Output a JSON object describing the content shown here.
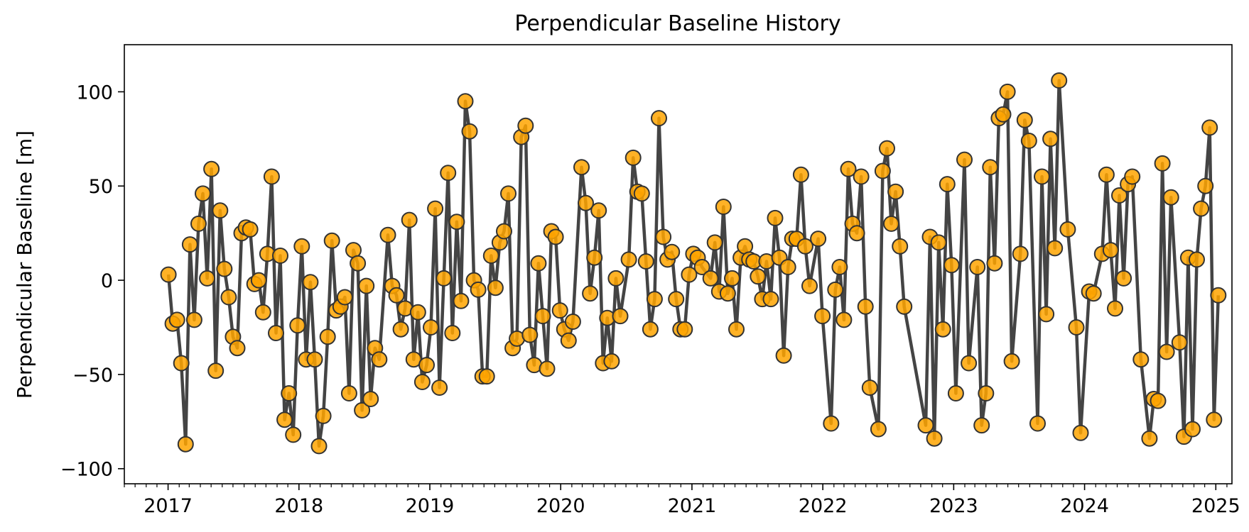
{
  "chart_data": {
    "type": "line",
    "title": "Perpendicular Baseline History",
    "xlabel": "",
    "ylabel": "Perpendicular Baseline [m]",
    "x_ticks": [
      "2017",
      "2018",
      "2019",
      "2020",
      "2021",
      "2022",
      "2023",
      "2024",
      "2025"
    ],
    "y_ticks": [
      100,
      50,
      0,
      -50,
      -100
    ],
    "y_tick_labels": [
      "100",
      "50",
      "0",
      "−50",
      "−100"
    ],
    "xlim": [
      "2016-09-01",
      "2025-02-15"
    ],
    "ylim": [
      -108,
      125
    ],
    "grid": false,
    "legend": "none",
    "colors": {
      "line": "#444444",
      "marker_fill": "#FFA500",
      "marker_edge": "#333333"
    },
    "series": [
      {
        "marker": "circle",
        "points": [
          [
            "2017-01-02",
            3
          ],
          [
            "2017-01-14",
            -23
          ],
          [
            "2017-01-26",
            -21
          ],
          [
            "2017-02-07",
            -44
          ],
          [
            "2017-02-19",
            -87
          ],
          [
            "2017-03-03",
            19
          ],
          [
            "2017-03-15",
            -21
          ],
          [
            "2017-03-27",
            30
          ],
          [
            "2017-04-08",
            46
          ],
          [
            "2017-04-20",
            1
          ],
          [
            "2017-05-02",
            59
          ],
          [
            "2017-05-14",
            -48
          ],
          [
            "2017-05-26",
            37
          ],
          [
            "2017-06-07",
            6
          ],
          [
            "2017-06-19",
            -9
          ],
          [
            "2017-07-01",
            -30
          ],
          [
            "2017-07-13",
            -36
          ],
          [
            "2017-07-25",
            25
          ],
          [
            "2017-08-06",
            28
          ],
          [
            "2017-08-18",
            27
          ],
          [
            "2017-08-30",
            -2
          ],
          [
            "2017-09-11",
            0
          ],
          [
            "2017-09-23",
            -17
          ],
          [
            "2017-10-05",
            14
          ],
          [
            "2017-10-17",
            55
          ],
          [
            "2017-10-29",
            -28
          ],
          [
            "2017-11-10",
            13
          ],
          [
            "2017-11-22",
            -74
          ],
          [
            "2017-12-04",
            -60
          ],
          [
            "2017-12-16",
            -82
          ],
          [
            "2017-12-28",
            -24
          ],
          [
            "2018-01-09",
            18
          ],
          [
            "2018-01-21",
            -42
          ],
          [
            "2018-02-02",
            -1
          ],
          [
            "2018-02-14",
            -42
          ],
          [
            "2018-02-26",
            -88
          ],
          [
            "2018-03-10",
            -72
          ],
          [
            "2018-03-22",
            -30
          ],
          [
            "2018-04-03",
            21
          ],
          [
            "2018-04-15",
            -16
          ],
          [
            "2018-04-27",
            -14
          ],
          [
            "2018-05-09",
            -9
          ],
          [
            "2018-05-21",
            -60
          ],
          [
            "2018-06-02",
            16
          ],
          [
            "2018-06-14",
            9
          ],
          [
            "2018-06-26",
            -69
          ],
          [
            "2018-07-08",
            -3
          ],
          [
            "2018-07-20",
            -63
          ],
          [
            "2018-08-01",
            -36
          ],
          [
            "2018-08-13",
            -42
          ],
          [
            "2018-09-06",
            24
          ],
          [
            "2018-09-18",
            -3
          ],
          [
            "2018-09-30",
            -8
          ],
          [
            "2018-10-12",
            -26
          ],
          [
            "2018-10-24",
            -15
          ],
          [
            "2018-11-05",
            32
          ],
          [
            "2018-11-17",
            -42
          ],
          [
            "2018-11-29",
            -17
          ],
          [
            "2018-12-11",
            -54
          ],
          [
            "2018-12-23",
            -45
          ],
          [
            "2019-01-04",
            -25
          ],
          [
            "2019-01-16",
            38
          ],
          [
            "2019-01-28",
            -57
          ],
          [
            "2019-02-09",
            1
          ],
          [
            "2019-02-21",
            57
          ],
          [
            "2019-03-05",
            -28
          ],
          [
            "2019-03-17",
            31
          ],
          [
            "2019-03-29",
            -11
          ],
          [
            "2019-04-10",
            95
          ],
          [
            "2019-04-22",
            79
          ],
          [
            "2019-05-04",
            0
          ],
          [
            "2019-05-16",
            -5
          ],
          [
            "2019-05-28",
            -51
          ],
          [
            "2019-06-09",
            -51
          ],
          [
            "2019-06-21",
            13
          ],
          [
            "2019-07-03",
            -4
          ],
          [
            "2019-07-15",
            20
          ],
          [
            "2019-07-27",
            26
          ],
          [
            "2019-08-08",
            46
          ],
          [
            "2019-08-20",
            -36
          ],
          [
            "2019-09-01",
            -31
          ],
          [
            "2019-09-13",
            76
          ],
          [
            "2019-09-25",
            82
          ],
          [
            "2019-10-07",
            -29
          ],
          [
            "2019-10-19",
            -45
          ],
          [
            "2019-10-31",
            9
          ],
          [
            "2019-11-12",
            -19
          ],
          [
            "2019-11-24",
            -47
          ],
          [
            "2019-12-06",
            26
          ],
          [
            "2019-12-18",
            23
          ],
          [
            "2019-12-30",
            -16
          ],
          [
            "2020-01-11",
            -26
          ],
          [
            "2020-01-23",
            -32
          ],
          [
            "2020-02-04",
            -22
          ],
          [
            "2020-02-28",
            60
          ],
          [
            "2020-03-11",
            41
          ],
          [
            "2020-03-23",
            -7
          ],
          [
            "2020-04-04",
            12
          ],
          [
            "2020-04-16",
            37
          ],
          [
            "2020-04-28",
            -44
          ],
          [
            "2020-05-10",
            -20
          ],
          [
            "2020-05-22",
            -43
          ],
          [
            "2020-06-03",
            1
          ],
          [
            "2020-06-15",
            -19
          ],
          [
            "2020-07-09",
            11
          ],
          [
            "2020-07-21",
            65
          ],
          [
            "2020-08-02",
            47
          ],
          [
            "2020-08-14",
            46
          ],
          [
            "2020-08-26",
            10
          ],
          [
            "2020-09-07",
            -26
          ],
          [
            "2020-09-19",
            -10
          ],
          [
            "2020-10-01",
            86
          ],
          [
            "2020-10-13",
            23
          ],
          [
            "2020-10-25",
            11
          ],
          [
            "2020-11-06",
            15
          ],
          [
            "2020-11-18",
            -10
          ],
          [
            "2020-11-30",
            -26
          ],
          [
            "2020-12-12",
            -26
          ],
          [
            "2020-12-24",
            3
          ],
          [
            "2021-01-05",
            14
          ],
          [
            "2021-01-17",
            12
          ],
          [
            "2021-01-29",
            7
          ],
          [
            "2021-02-22",
            1
          ],
          [
            "2021-03-06",
            20
          ],
          [
            "2021-03-18",
            -6
          ],
          [
            "2021-03-30",
            39
          ],
          [
            "2021-04-11",
            -7
          ],
          [
            "2021-04-23",
            1
          ],
          [
            "2021-05-05",
            -26
          ],
          [
            "2021-05-17",
            12
          ],
          [
            "2021-05-29",
            18
          ],
          [
            "2021-06-10",
            11
          ],
          [
            "2021-06-22",
            10
          ],
          [
            "2021-07-04",
            2
          ],
          [
            "2021-07-16",
            -10
          ],
          [
            "2021-07-28",
            10
          ],
          [
            "2021-08-09",
            -10
          ],
          [
            "2021-08-21",
            33
          ],
          [
            "2021-09-02",
            12
          ],
          [
            "2021-09-14",
            -40
          ],
          [
            "2021-09-26",
            7
          ],
          [
            "2021-10-08",
            22
          ],
          [
            "2021-10-20",
            22
          ],
          [
            "2021-11-01",
            56
          ],
          [
            "2021-11-13",
            18
          ],
          [
            "2021-11-25",
            -3
          ],
          [
            "2021-12-19",
            22
          ],
          [
            "2021-12-31",
            -19
          ],
          [
            "2022-01-24",
            -76
          ],
          [
            "2022-02-05",
            -5
          ],
          [
            "2022-02-17",
            7
          ],
          [
            "2022-03-01",
            -21
          ],
          [
            "2022-03-13",
            59
          ],
          [
            "2022-03-25",
            30
          ],
          [
            "2022-04-06",
            25
          ],
          [
            "2022-04-18",
            55
          ],
          [
            "2022-04-30",
            -14
          ],
          [
            "2022-05-12",
            -57
          ],
          [
            "2022-06-05",
            -79
          ],
          [
            "2022-06-17",
            58
          ],
          [
            "2022-06-29",
            70
          ],
          [
            "2022-07-11",
            30
          ],
          [
            "2022-07-23",
            47
          ],
          [
            "2022-08-04",
            18
          ],
          [
            "2022-08-16",
            -14
          ],
          [
            "2022-10-15",
            -77
          ],
          [
            "2022-10-27",
            23
          ],
          [
            "2022-11-08",
            -84
          ],
          [
            "2022-11-20",
            20
          ],
          [
            "2022-12-02",
            -26
          ],
          [
            "2022-12-14",
            51
          ],
          [
            "2022-12-26",
            8
          ],
          [
            "2023-01-07",
            -60
          ],
          [
            "2023-01-31",
            64
          ],
          [
            "2023-02-12",
            -44
          ],
          [
            "2023-03-08",
            7
          ],
          [
            "2023-03-20",
            -77
          ],
          [
            "2023-04-01",
            -60
          ],
          [
            "2023-04-13",
            60
          ],
          [
            "2023-04-25",
            9
          ],
          [
            "2023-05-07",
            86
          ],
          [
            "2023-05-19",
            88
          ],
          [
            "2023-05-31",
            100
          ],
          [
            "2023-06-12",
            -43
          ],
          [
            "2023-07-06",
            14
          ],
          [
            "2023-07-18",
            85
          ],
          [
            "2023-07-30",
            74
          ],
          [
            "2023-08-23",
            -76
          ],
          [
            "2023-09-04",
            55
          ],
          [
            "2023-09-16",
            -18
          ],
          [
            "2023-09-28",
            75
          ],
          [
            "2023-10-10",
            17
          ],
          [
            "2023-10-22",
            106
          ],
          [
            "2023-11-15",
            27
          ],
          [
            "2023-12-09",
            -25
          ],
          [
            "2023-12-21",
            -81
          ],
          [
            "2024-01-14",
            -6
          ],
          [
            "2024-01-26",
            -7
          ],
          [
            "2024-02-19",
            14
          ],
          [
            "2024-03-02",
            56
          ],
          [
            "2024-03-14",
            16
          ],
          [
            "2024-03-26",
            -15
          ],
          [
            "2024-04-07",
            45
          ],
          [
            "2024-04-19",
            1
          ],
          [
            "2024-05-01",
            51
          ],
          [
            "2024-05-13",
            55
          ],
          [
            "2024-06-06",
            -42
          ],
          [
            "2024-06-30",
            -84
          ],
          [
            "2024-07-12",
            -63
          ],
          [
            "2024-07-24",
            -64
          ],
          [
            "2024-08-05",
            62
          ],
          [
            "2024-08-17",
            -38
          ],
          [
            "2024-08-29",
            44
          ],
          [
            "2024-09-22",
            -33
          ],
          [
            "2024-10-04",
            -83
          ],
          [
            "2024-10-16",
            12
          ],
          [
            "2024-10-28",
            -79
          ],
          [
            "2024-11-09",
            11
          ],
          [
            "2024-11-21",
            38
          ],
          [
            "2024-12-03",
            50
          ],
          [
            "2024-12-15",
            81
          ],
          [
            "2024-12-27",
            -74
          ],
          [
            "2025-01-08",
            -8
          ]
        ]
      }
    ]
  }
}
